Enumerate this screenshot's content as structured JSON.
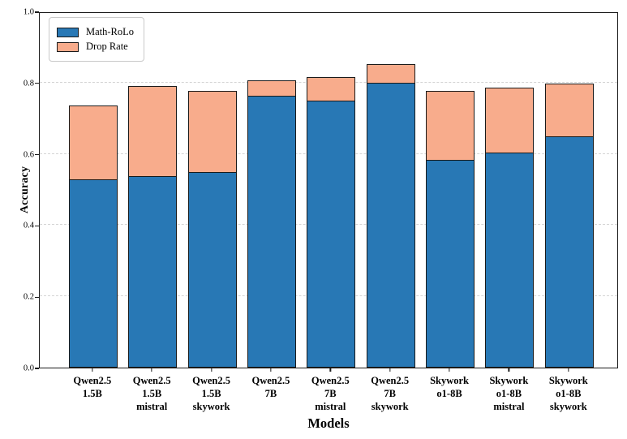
{
  "figure": {
    "background": "#ffffff"
  },
  "chart_data": {
    "type": "bar",
    "stacked": true,
    "title": "",
    "xlabel": "Models",
    "ylabel": "Accuracy",
    "ylim": [
      0.0,
      1.0
    ],
    "yticks": [
      "0.0",
      "0.2",
      "0.4",
      "0.6",
      "0.8",
      "1.0"
    ],
    "grid": "horizontal-dashed",
    "grid_color": "#d4d4d4",
    "legend_position": "upper-left",
    "bar_edge_color": "#1a1a1a",
    "categories": [
      [
        "Qwen2.5",
        "1.5B"
      ],
      [
        "Qwen2.5",
        "1.5B",
        "mistral"
      ],
      [
        "Qwen2.5",
        "1.5B",
        "skywork"
      ],
      [
        "Qwen2.5",
        "7B"
      ],
      [
        "Qwen2.5",
        "7B",
        "mistral"
      ],
      [
        "Qwen2.5",
        "7B",
        "skywork"
      ],
      [
        "Skywork",
        "o1-8B"
      ],
      [
        "Skywork",
        "o1-8B",
        "mistral"
      ],
      [
        "Skywork",
        "o1-8B",
        "skywork"
      ]
    ],
    "series": [
      {
        "name": "Math-RoLo",
        "color": "#2878B5",
        "values": [
          0.53,
          0.54,
          0.55,
          0.765,
          0.75,
          0.8,
          0.585,
          0.605,
          0.65
        ]
      },
      {
        "name": "Drop Rate",
        "color": "#F8AC8C",
        "values": [
          0.21,
          0.255,
          0.23,
          0.045,
          0.07,
          0.055,
          0.195,
          0.185,
          0.15
        ]
      }
    ],
    "stack_totals": [
      0.74,
      0.795,
      0.78,
      0.81,
      0.82,
      0.855,
      0.78,
      0.79,
      0.8
    ]
  }
}
